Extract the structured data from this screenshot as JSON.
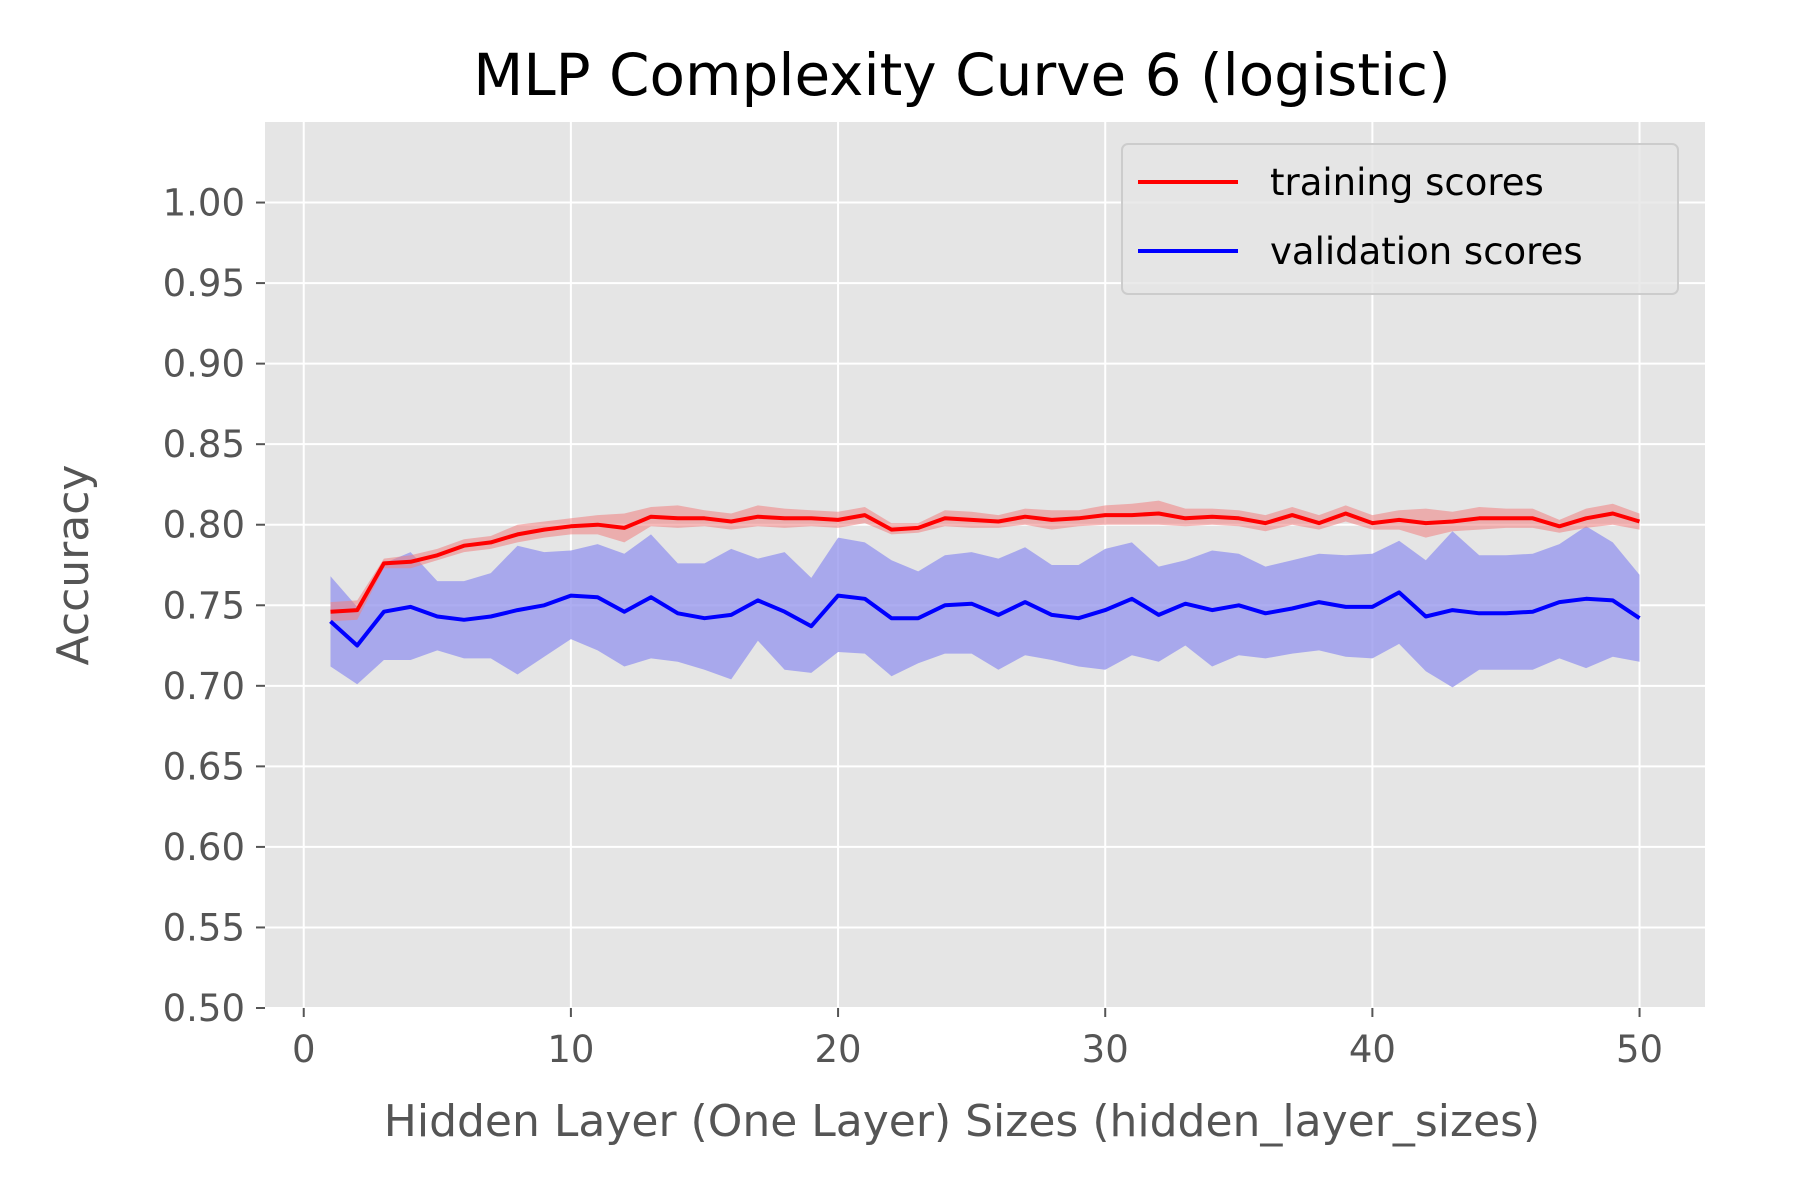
{
  "chart_data": {
    "type": "line",
    "title": "MLP Complexity Curve 6 (logistic)",
    "xlabel": "Hidden Layer (One Layer) Sizes (hidden_layer_sizes)",
    "ylabel": "Accuracy",
    "xlim": [
      -1.45,
      52.45
    ],
    "ylim": [
      0.5,
      1.05
    ],
    "xticks": [
      0,
      10,
      20,
      30,
      40,
      50
    ],
    "xtick_labels": [
      "0",
      "10",
      "20",
      "30",
      "40",
      "50"
    ],
    "yticks": [
      0.5,
      0.55,
      0.6,
      0.65,
      0.7,
      0.75,
      0.8,
      0.85,
      0.9,
      0.95,
      1.0
    ],
    "ytick_labels": [
      "0.50",
      "0.55",
      "0.60",
      "0.65",
      "0.70",
      "0.75",
      "0.80",
      "0.85",
      "0.90",
      "0.95",
      "1.00"
    ],
    "grid": true,
    "legend_position": "top-right",
    "x": [
      1,
      2,
      3,
      4,
      5,
      6,
      7,
      8,
      9,
      10,
      11,
      12,
      13,
      14,
      15,
      16,
      17,
      18,
      19,
      20,
      21,
      22,
      23,
      24,
      25,
      26,
      27,
      28,
      29,
      30,
      31,
      32,
      33,
      34,
      35,
      36,
      37,
      38,
      39,
      40,
      41,
      42,
      43,
      44,
      45,
      46,
      47,
      48,
      49,
      50
    ],
    "series": [
      {
        "name": "training scores",
        "color": "#ff0000",
        "band_color": "#f08080",
        "values": [
          0.746,
          0.747,
          0.776,
          0.777,
          0.781,
          0.787,
          0.789,
          0.794,
          0.797,
          0.799,
          0.8,
          0.798,
          0.805,
          0.804,
          0.804,
          0.802,
          0.805,
          0.804,
          0.804,
          0.803,
          0.806,
          0.797,
          0.798,
          0.804,
          0.803,
          0.802,
          0.805,
          0.803,
          0.804,
          0.806,
          0.806,
          0.807,
          0.804,
          0.805,
          0.804,
          0.801,
          0.806,
          0.801,
          0.807,
          0.801,
          0.803,
          0.801,
          0.802,
          0.804,
          0.804,
          0.804,
          0.799,
          0.804,
          0.807,
          0.802
        ],
        "lower": [
          0.74,
          0.741,
          0.773,
          0.773,
          0.778,
          0.783,
          0.785,
          0.789,
          0.792,
          0.794,
          0.794,
          0.789,
          0.799,
          0.798,
          0.799,
          0.797,
          0.799,
          0.798,
          0.799,
          0.798,
          0.801,
          0.794,
          0.795,
          0.799,
          0.798,
          0.798,
          0.8,
          0.797,
          0.799,
          0.8,
          0.8,
          0.8,
          0.799,
          0.8,
          0.799,
          0.796,
          0.8,
          0.797,
          0.802,
          0.797,
          0.797,
          0.792,
          0.796,
          0.797,
          0.798,
          0.798,
          0.795,
          0.798,
          0.8,
          0.797
        ],
        "upper": [
          0.752,
          0.753,
          0.779,
          0.781,
          0.785,
          0.791,
          0.793,
          0.8,
          0.802,
          0.804,
          0.806,
          0.807,
          0.811,
          0.812,
          0.809,
          0.807,
          0.812,
          0.81,
          0.809,
          0.808,
          0.811,
          0.801,
          0.801,
          0.809,
          0.808,
          0.806,
          0.81,
          0.809,
          0.809,
          0.812,
          0.813,
          0.815,
          0.81,
          0.81,
          0.809,
          0.806,
          0.811,
          0.806,
          0.812,
          0.806,
          0.809,
          0.81,
          0.808,
          0.811,
          0.81,
          0.81,
          0.803,
          0.81,
          0.813,
          0.807
        ]
      },
      {
        "name": "validation scores",
        "color": "#0000ff",
        "band_color": "#9999ee",
        "values": [
          0.74,
          0.725,
          0.746,
          0.749,
          0.743,
          0.741,
          0.743,
          0.747,
          0.75,
          0.756,
          0.755,
          0.746,
          0.755,
          0.745,
          0.742,
          0.744,
          0.753,
          0.746,
          0.737,
          0.756,
          0.754,
          0.742,
          0.742,
          0.75,
          0.751,
          0.744,
          0.752,
          0.744,
          0.742,
          0.747,
          0.754,
          0.744,
          0.751,
          0.747,
          0.75,
          0.745,
          0.748,
          0.752,
          0.749,
          0.749,
          0.758,
          0.743,
          0.747,
          0.745,
          0.745,
          0.746,
          0.752,
          0.754,
          0.753,
          0.742
        ],
        "lower": [
          0.712,
          0.701,
          0.716,
          0.716,
          0.722,
          0.717,
          0.717,
          0.707,
          0.718,
          0.729,
          0.722,
          0.712,
          0.717,
          0.715,
          0.71,
          0.704,
          0.728,
          0.71,
          0.708,
          0.721,
          0.72,
          0.706,
          0.714,
          0.72,
          0.72,
          0.71,
          0.719,
          0.716,
          0.712,
          0.71,
          0.719,
          0.715,
          0.725,
          0.712,
          0.719,
          0.717,
          0.72,
          0.722,
          0.718,
          0.717,
          0.726,
          0.709,
          0.699,
          0.71,
          0.71,
          0.71,
          0.717,
          0.711,
          0.718,
          0.715
        ],
        "upper": [
          0.768,
          0.749,
          0.776,
          0.783,
          0.765,
          0.765,
          0.77,
          0.787,
          0.783,
          0.784,
          0.788,
          0.782,
          0.794,
          0.776,
          0.776,
          0.785,
          0.779,
          0.783,
          0.767,
          0.792,
          0.789,
          0.778,
          0.771,
          0.781,
          0.783,
          0.779,
          0.786,
          0.775,
          0.775,
          0.785,
          0.789,
          0.774,
          0.778,
          0.784,
          0.782,
          0.774,
          0.778,
          0.782,
          0.781,
          0.782,
          0.79,
          0.778,
          0.796,
          0.781,
          0.781,
          0.782,
          0.788,
          0.799,
          0.789,
          0.769
        ]
      }
    ]
  }
}
